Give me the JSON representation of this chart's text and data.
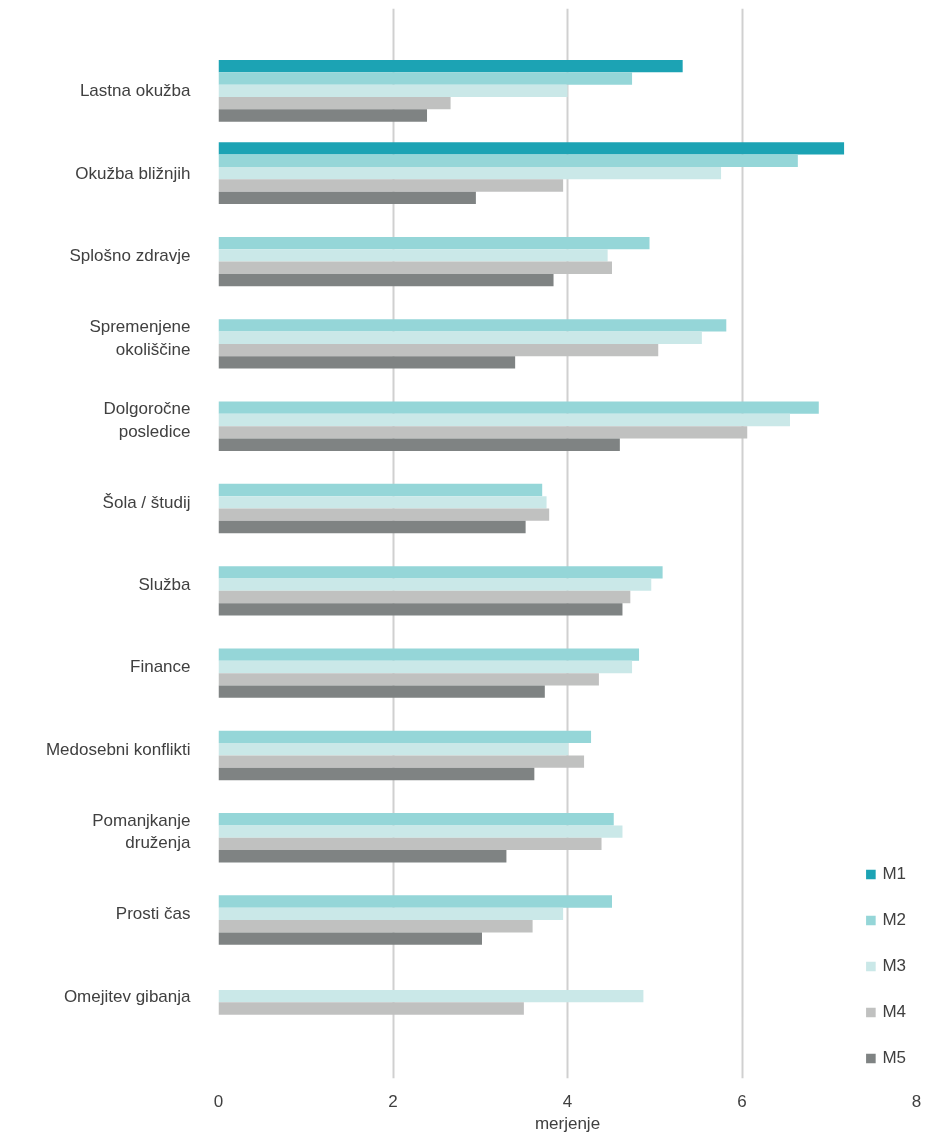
{
  "chart_data": {
    "type": "bar",
    "orientation": "horizontal",
    "xlabel": "merjenje",
    "categories": [
      "Lastna okužba",
      "Okužba bližnjih",
      "Splošno zdravje",
      "Spremenjene okoliščine",
      "Dolgoročne posledice",
      "Šola / študij",
      "Služba",
      "Finance",
      "Medosebni konflikti",
      "Pomanjkanje druženja",
      "Prosti čas",
      "Omejitev gibanja"
    ],
    "series": [
      {
        "name": "M1",
        "color": "#1ca3b4",
        "values": [
          5.32,
          7.17,
          null,
          null,
          null,
          null,
          null,
          null,
          null,
          null,
          null,
          null
        ]
      },
      {
        "name": "M2",
        "color": "#95d6d8",
        "values": [
          4.74,
          6.64,
          4.94,
          5.82,
          6.88,
          3.71,
          5.09,
          4.82,
          4.27,
          4.53,
          4.51,
          null
        ]
      },
      {
        "name": "M3",
        "color": "#cae8e8",
        "values": [
          4.0,
          5.76,
          4.46,
          5.54,
          6.55,
          3.76,
          4.96,
          4.74,
          4.01,
          4.63,
          3.95,
          4.87
        ]
      },
      {
        "name": "M4",
        "color": "#c0c1c0",
        "values": [
          2.66,
          3.95,
          4.51,
          5.04,
          6.06,
          3.79,
          4.72,
          4.36,
          4.19,
          4.39,
          3.6,
          3.5
        ]
      },
      {
        "name": "M5",
        "color": "#7f8383",
        "values": [
          2.39,
          2.95,
          3.84,
          3.4,
          4.6,
          3.52,
          4.63,
          3.74,
          3.62,
          3.3,
          3.02,
          null
        ]
      }
    ],
    "xlim": [
      0,
      8
    ],
    "xticks": [
      0,
      2,
      4,
      6,
      8
    ],
    "grid": "x",
    "legend": "bottom right"
  }
}
